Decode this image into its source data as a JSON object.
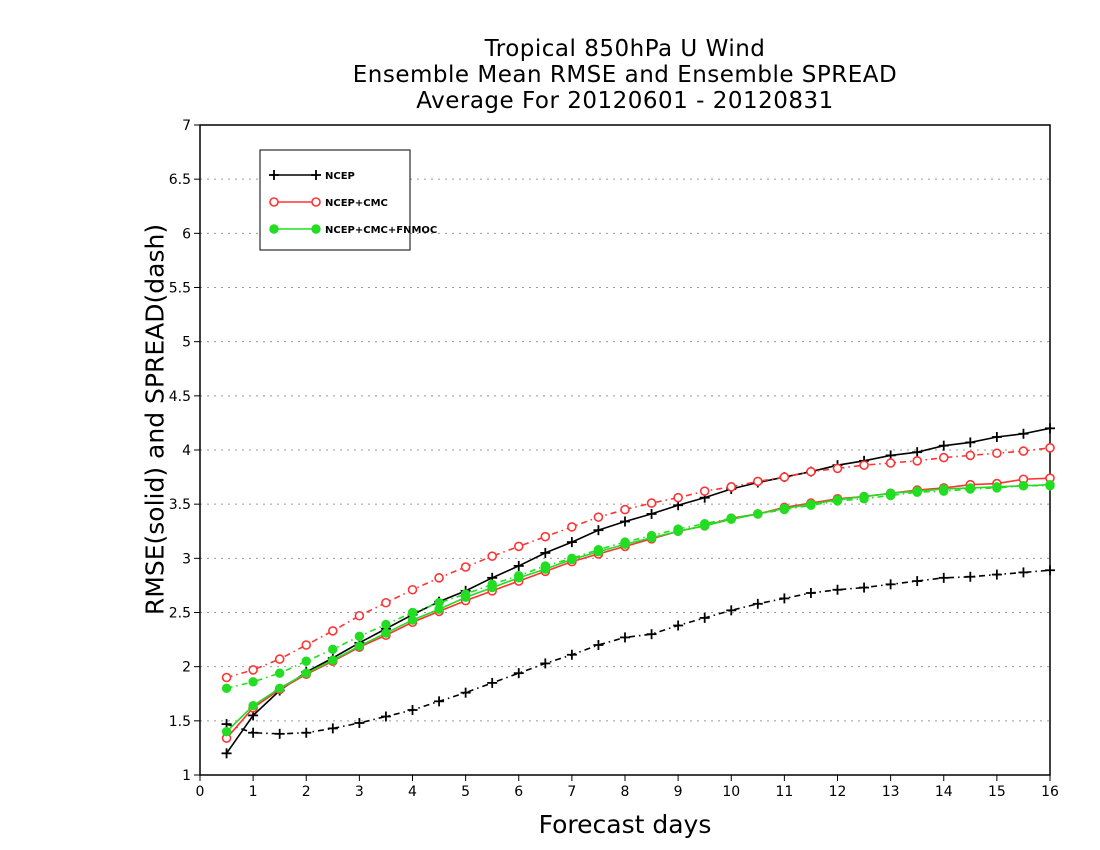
{
  "chart_data": {
    "type": "line",
    "title_lines": [
      "Tropical 850hPa U Wind",
      "Ensemble Mean RMSE and Ensemble SPREAD",
      "Average For 20120601 - 20120831"
    ],
    "xlabel": "Forecast days",
    "ylabel": "RMSE(solid) and SPREAD(dash)",
    "xlim": [
      0,
      16
    ],
    "ylim": [
      1,
      7
    ],
    "xticks": [
      0,
      1,
      2,
      3,
      4,
      5,
      6,
      7,
      8,
      9,
      10,
      11,
      12,
      13,
      14,
      15,
      16
    ],
    "yticks": [
      1,
      1.5,
      2,
      2.5,
      3,
      3.5,
      4,
      4.5,
      5,
      5.5,
      6,
      6.5,
      7
    ],
    "ytick_labels": [
      "1",
      "1.5",
      "2",
      "2.5",
      "3",
      "3.5",
      "4",
      "4.5",
      "5",
      "5.5",
      "6",
      "6.5",
      "7"
    ],
    "grid": "horizontal dotted",
    "legend_position": "top-left",
    "x": [
      0.5,
      1,
      1.5,
      2,
      2.5,
      3,
      3.5,
      4,
      4.5,
      5,
      5.5,
      6,
      6.5,
      7,
      7.5,
      8,
      8.5,
      9,
      9.5,
      10,
      10.5,
      11,
      11.5,
      12,
      12.5,
      13,
      13.5,
      14,
      14.5,
      15,
      15.5,
      16
    ],
    "series": [
      {
        "name": "NCEP",
        "color": "#000000",
        "marker": "plus",
        "rmse": [
          1.2,
          1.55,
          1.78,
          1.95,
          2.08,
          2.22,
          2.35,
          2.48,
          2.6,
          2.7,
          2.82,
          2.93,
          3.05,
          3.15,
          3.26,
          3.34,
          3.41,
          3.49,
          3.56,
          3.64,
          3.7,
          3.75,
          3.8,
          3.86,
          3.9,
          3.95,
          3.98,
          4.04,
          4.07,
          4.12,
          4.15,
          4.2
        ],
        "spread": [
          1.47,
          1.39,
          1.38,
          1.39,
          1.43,
          1.48,
          1.54,
          1.6,
          1.68,
          1.76,
          1.85,
          1.94,
          2.03,
          2.11,
          2.2,
          2.27,
          2.3,
          2.38,
          2.45,
          2.52,
          2.58,
          2.63,
          2.68,
          2.71,
          2.73,
          2.76,
          2.79,
          2.82,
          2.83,
          2.85,
          2.87,
          2.89
        ]
      },
      {
        "name": "NCEP+CMC",
        "color": "#ff3333",
        "marker": "circle-open",
        "rmse": [
          1.34,
          1.62,
          1.79,
          1.93,
          2.05,
          2.18,
          2.29,
          2.41,
          2.51,
          2.61,
          2.7,
          2.79,
          2.88,
          2.97,
          3.04,
          3.11,
          3.18,
          3.25,
          3.3,
          3.37,
          3.41,
          3.47,
          3.51,
          3.55,
          3.57,
          3.6,
          3.63,
          3.65,
          3.68,
          3.69,
          3.73,
          3.74
        ],
        "spread": [
          1.9,
          1.97,
          2.07,
          2.2,
          2.33,
          2.47,
          2.59,
          2.71,
          2.82,
          2.92,
          3.02,
          3.11,
          3.2,
          3.29,
          3.38,
          3.45,
          3.51,
          3.56,
          3.62,
          3.66,
          3.71,
          3.75,
          3.8,
          3.83,
          3.86,
          3.88,
          3.9,
          3.93,
          3.95,
          3.97,
          3.99,
          4.02
        ]
      },
      {
        "name": "NCEP+CMC+FNMOC",
        "color": "#22dd22",
        "marker": "circle-filled",
        "rmse": [
          1.4,
          1.64,
          1.8,
          1.94,
          2.06,
          2.19,
          2.31,
          2.43,
          2.53,
          2.64,
          2.73,
          2.82,
          2.9,
          2.99,
          3.06,
          3.13,
          3.19,
          3.25,
          3.3,
          3.36,
          3.41,
          3.46,
          3.5,
          3.54,
          3.57,
          3.6,
          3.62,
          3.64,
          3.65,
          3.66,
          3.67,
          3.68
        ],
        "spread": [
          1.8,
          1.86,
          1.94,
          2.05,
          2.16,
          2.28,
          2.39,
          2.5,
          2.59,
          2.67,
          2.76,
          2.84,
          2.93,
          3.0,
          3.08,
          3.15,
          3.21,
          3.27,
          3.32,
          3.37,
          3.41,
          3.45,
          3.49,
          3.53,
          3.55,
          3.58,
          3.61,
          3.62,
          3.64,
          3.65,
          3.67,
          3.67
        ]
      }
    ]
  }
}
